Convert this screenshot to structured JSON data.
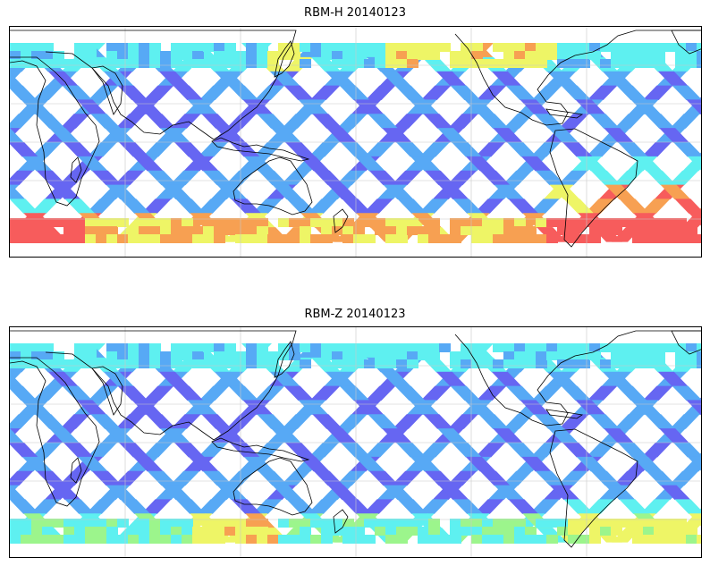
{
  "panels": [
    {
      "title": "RBM-H 20140123",
      "colors": {
        "low": "#6666f2",
        "mid": "#57a9f5",
        "cyan": "#5ef0f0",
        "green": "#9cf58c",
        "yellow": "#eef566",
        "orange": "#f7a052",
        "red": "#f75c5c"
      }
    },
    {
      "title": "RBM-Z 20140123",
      "colors": {
        "low": "#6666f2",
        "mid": "#57a9f5",
        "cyan": "#5ef0f0",
        "green": "#9cf58c",
        "yellow": "#eef566",
        "orange": "#f7a052",
        "red": "#f75c5c"
      }
    }
  ],
  "map": {
    "projection": "plate-carree",
    "central_longitude": 180,
    "coverage_lat_range": [
      -50,
      50
    ],
    "gridlines": true,
    "coastlines": true
  }
}
